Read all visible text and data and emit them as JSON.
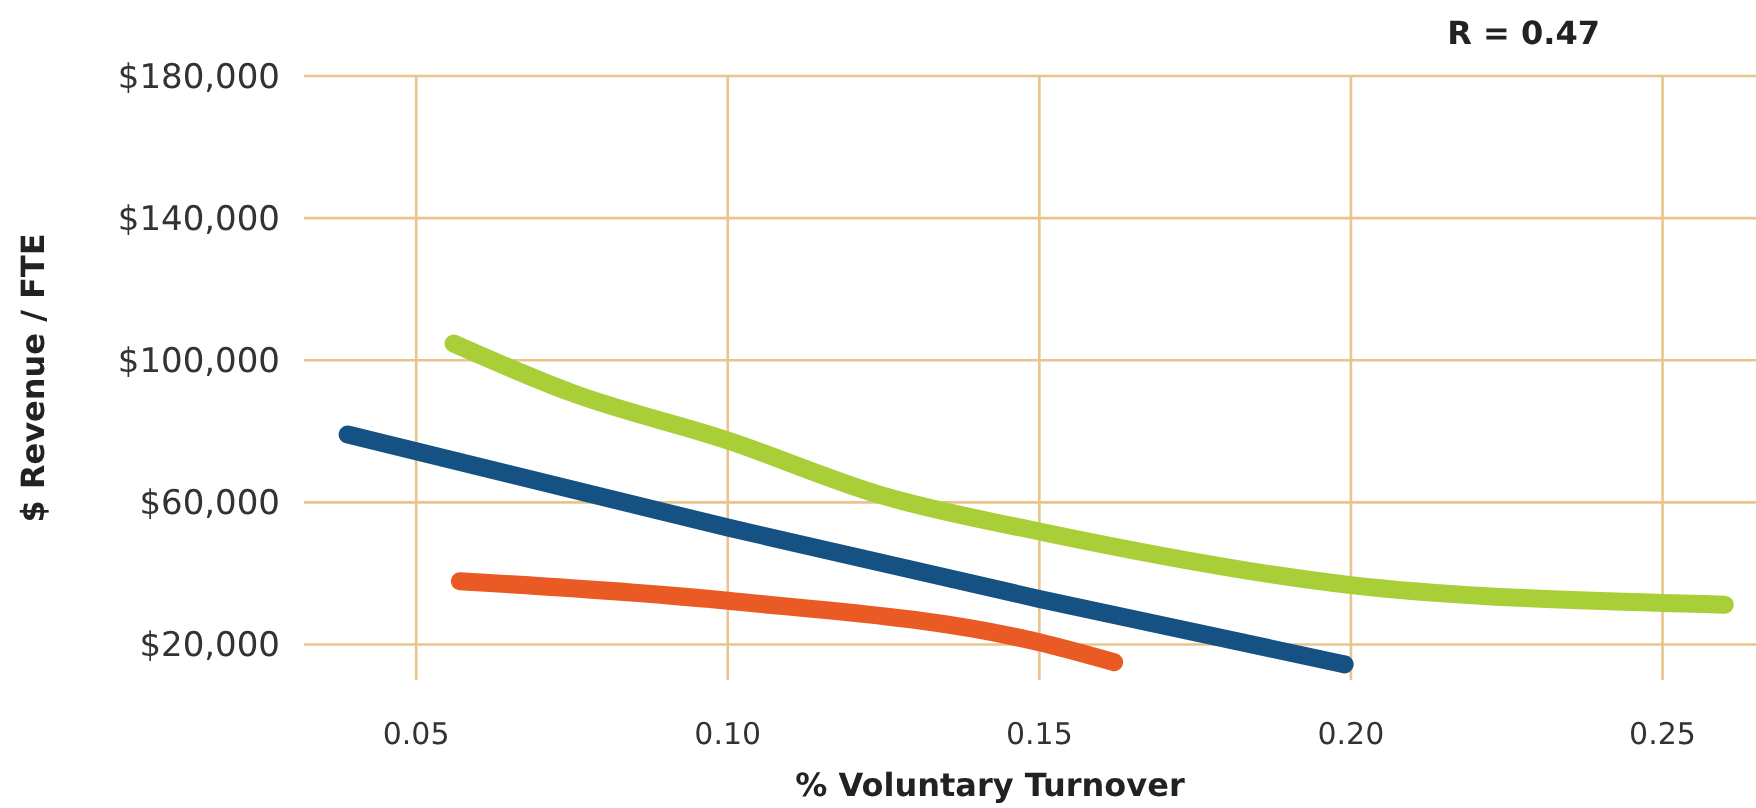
{
  "chart_data": {
    "type": "line",
    "xlabel": "% Voluntary Turnover",
    "ylabel": "$ Revenue / FTE",
    "annotations": [
      "R = 0.47"
    ],
    "xlim": [
      0.032,
      0.265
    ],
    "xticks": [
      {
        "value": 0.05,
        "label": "0.05"
      },
      {
        "value": 0.1,
        "label": "0.10"
      },
      {
        "value": 0.15,
        "label": "0.15"
      },
      {
        "value": 0.2,
        "label": "0.20"
      },
      {
        "value": 0.25,
        "label": "0.25"
      }
    ],
    "ylim": [
      10000,
      180000
    ],
    "yticks": [
      {
        "value": 20000,
        "label": "$20,000"
      },
      {
        "value": 60000,
        "label": "$60,000"
      },
      {
        "value": 100000,
        "label": "$100,000"
      },
      {
        "value": 140000,
        "label": "$140,000"
      },
      {
        "value": 180000,
        "label": "$180,000"
      }
    ],
    "grid": true,
    "marker": "none",
    "line_style": "solid",
    "series": [
      {
        "color": "#a8cf38",
        "x": [
          0.056,
          0.075,
          0.1,
          0.125,
          0.15,
          0.2,
          0.25,
          0.26
        ],
        "values": [
          104700,
          90800,
          77400,
          61800,
          51800,
          36700,
          31700,
          31200
        ]
      },
      {
        "color": "#155283",
        "x": [
          0.039,
          0.1,
          0.15,
          0.199
        ],
        "values": [
          79100,
          52900,
          32800,
          14400
        ]
      },
      {
        "color": "#e95a24",
        "x": [
          0.057,
          0.1,
          0.15,
          0.162
        ],
        "values": [
          37800,
          32300,
          20600,
          15000
        ]
      }
    ]
  }
}
